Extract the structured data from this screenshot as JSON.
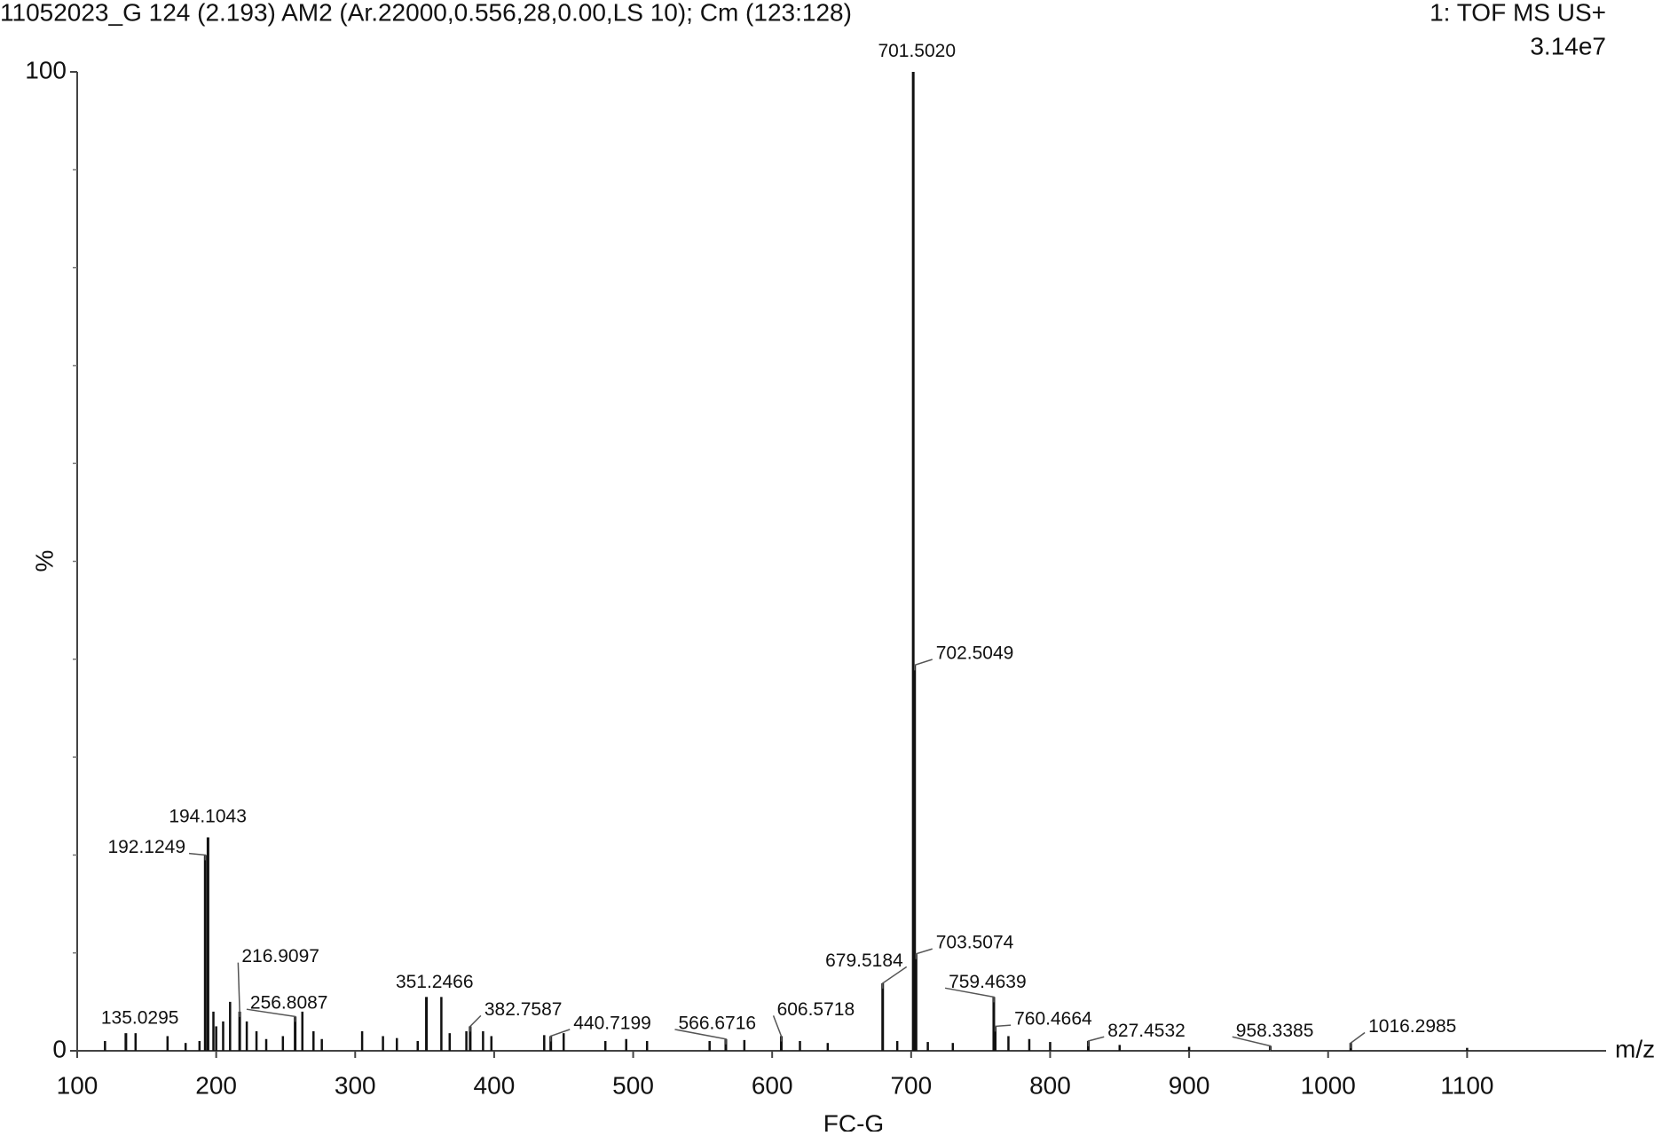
{
  "chart_data": {
    "type": "stem",
    "title": "11052023_G 124 (2.193) AM2 (Ar.22000,0.556,28,0.00,LS 10); Cm (123:128)",
    "function_label": "1: TOF MS US+",
    "intensity_label": "3.14e7",
    "y_label": "%",
    "x_label": "m/z",
    "sample_label": "FC-G",
    "color": "#111111",
    "x": [
      135.0295,
      192.1249,
      194.1043,
      216.9097,
      256.8087,
      351.2466,
      382.7587,
      440.7199,
      566.6716,
      606.5718,
      679.5184,
      701.502,
      702.5049,
      703.5074,
      759.4639,
      760.4664,
      827.4532,
      958.3385,
      1016.2985
    ],
    "x_labels": [
      "135.0295",
      "192.1249",
      "194.1043",
      "216.9097",
      "256.8087",
      "351.2466",
      "382.7587",
      "440.7199",
      "566.6716",
      "606.5718",
      "679.5184",
      "701.5020",
      "702.5049",
      "703.5074",
      "759.4639",
      "760.4664",
      "827.4532",
      "958.3385",
      "1016.2985"
    ],
    "values": [
      1.8,
      20,
      21.8,
      4,
      3.5,
      5.5,
      2.5,
      1.5,
      1.2,
      1.5,
      6.9,
      100,
      39.4,
      9.9,
      5.5,
      2.5,
      1,
      0.5,
      0.8
    ],
    "minor_peaks": {
      "x": [
        120,
        142,
        165,
        178,
        188,
        198,
        200,
        205,
        210,
        222,
        229,
        236,
        248,
        262,
        270,
        276,
        305,
        320,
        330,
        345,
        362,
        368,
        380,
        392,
        398,
        436,
        450,
        480,
        495,
        510,
        555,
        580,
        620,
        640,
        690,
        712,
        730,
        770,
        785,
        800,
        850,
        900,
        1100
      ],
      "values": [
        1,
        1.8,
        1.5,
        0.8,
        1,
        4,
        2.5,
        3,
        5,
        3,
        2,
        1.2,
        1.5,
        4,
        2,
        1.2,
        2,
        1.5,
        1.3,
        1,
        5.5,
        1.8,
        2,
        2,
        1.5,
        1.6,
        1.8,
        1,
        1.2,
        1,
        1,
        1.1,
        1,
        0.8,
        1,
        0.9,
        0.8,
        1.5,
        1.2,
        0.9,
        0.6,
        0.4,
        0.3
      ]
    },
    "xlim": [
      100,
      1200
    ],
    "xticks": [
      100,
      200,
      300,
      400,
      500,
      600,
      700,
      800,
      900,
      1000,
      1100
    ],
    "ylim": [
      0,
      100
    ],
    "yticks": [
      0,
      100
    ],
    "y_minor_ticks": [
      10,
      20,
      30,
      40,
      50,
      60,
      70,
      80,
      90
    ]
  }
}
